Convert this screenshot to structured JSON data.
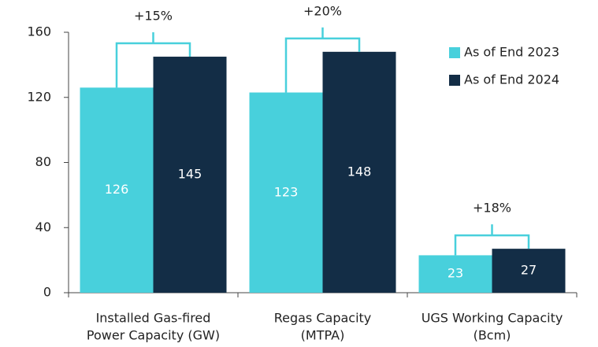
{
  "chart_data": {
    "type": "bar",
    "categories": [
      [
        "Installed Gas-fired",
        "Power Capacity (GW)"
      ],
      [
        "Regas Capacity",
        "(MTPA)"
      ],
      [
        "UGS Working Capacity",
        "(Bcm)"
      ]
    ],
    "series": [
      {
        "name": "As of End 2023",
        "color": "#48d0dc",
        "values": [
          126,
          123,
          23
        ]
      },
      {
        "name": "As of End 2024",
        "color": "#132d46",
        "values": [
          145,
          148,
          27
        ]
      }
    ],
    "annotations": [
      "+15%",
      "+20%",
      "+18%"
    ],
    "ylim": [
      0,
      160
    ],
    "yticks": [
      0,
      40,
      80,
      120,
      160
    ],
    "grid": false,
    "legend": "top-right"
  }
}
